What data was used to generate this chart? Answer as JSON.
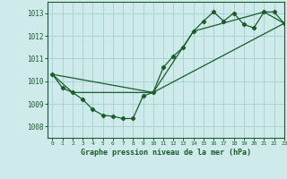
{
  "title": "Graphe pression niveau de la mer (hPa)",
  "background_color": "#ceeaea",
  "grid_color": "#a8d4d4",
  "line_color": "#1a5c2a",
  "xlim": [
    -0.5,
    23
  ],
  "ylim": [
    1007.5,
    1013.5
  ],
  "yticks": [
    1008,
    1009,
    1010,
    1011,
    1012,
    1013
  ],
  "xticks": [
    0,
    1,
    2,
    3,
    4,
    5,
    6,
    7,
    8,
    9,
    10,
    11,
    12,
    13,
    14,
    15,
    16,
    17,
    18,
    19,
    20,
    21,
    22,
    23
  ],
  "series1_x": [
    0,
    1,
    2,
    3,
    4,
    5,
    6,
    7,
    8,
    9,
    10,
    11,
    12,
    13,
    14,
    15,
    16,
    17,
    18,
    19,
    20,
    21,
    22,
    23
  ],
  "series1_y": [
    1010.3,
    1009.7,
    1009.5,
    1009.2,
    1008.75,
    1008.5,
    1008.45,
    1008.35,
    1008.35,
    1009.35,
    1009.5,
    1010.6,
    1011.1,
    1011.5,
    1012.2,
    1012.65,
    1013.05,
    1012.65,
    1013.0,
    1012.5,
    1012.35,
    1013.05,
    1013.05,
    1012.55
  ],
  "series2_x": [
    0,
    2,
    10,
    14,
    21,
    23
  ],
  "series2_y": [
    1010.3,
    1009.5,
    1009.5,
    1012.2,
    1013.05,
    1012.55
  ],
  "series3_x": [
    0,
    10,
    23
  ],
  "series3_y": [
    1010.3,
    1009.5,
    1012.55
  ]
}
